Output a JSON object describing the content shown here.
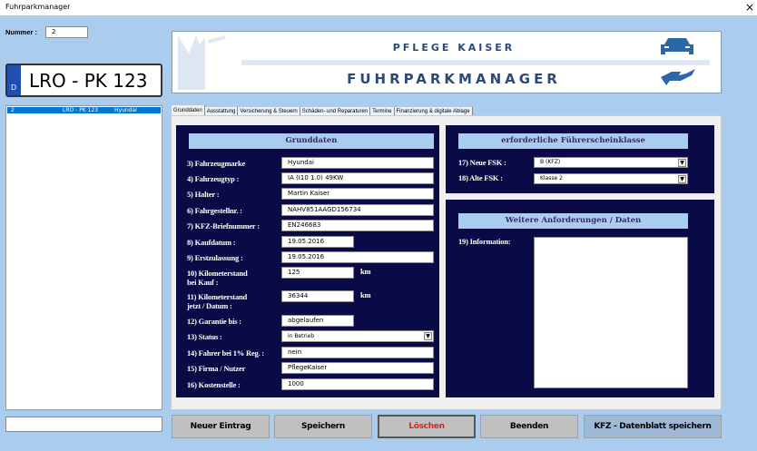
{
  "window": {
    "title": "Fuhrparkmanager",
    "close_icon": "×"
  },
  "nummer": {
    "label": "Nummer :",
    "value": "2"
  },
  "plate": {
    "country": "D",
    "text": "LRO - PK 123"
  },
  "list": {
    "rows": [
      {
        "nr": "2",
        "plate": "LRO - PK 123",
        "brand": "Hyundai"
      }
    ]
  },
  "bottom_input": {
    "value": ""
  },
  "banner": {
    "company": "PFLEGE KAISER",
    "title": "FUHRPARKMANAGER"
  },
  "tabs": [
    "Grunddaten",
    "Ausstattung",
    "Versicherung & Steuern",
    "Schäden- und Reparaturen",
    "Termine",
    "Finanzierung & digitale Ablage"
  ],
  "grunddaten": {
    "header": "Grunddaten",
    "fields": [
      {
        "label": "3) Fahrzeugmarke",
        "value": "Hyundai"
      },
      {
        "label": "4) Fahrzeugtyp :",
        "value": "IA (I10 1.0) 49KW"
      },
      {
        "label": "5) Halter :",
        "value": "Martin Kaiser"
      },
      {
        "label": "6) Fahrgestellnr. :",
        "value": "NAHV851AAGD156734"
      },
      {
        "label": "7) KFZ-Briefnummer :",
        "value": "EN246683"
      },
      {
        "label": "8) Kaufdatum :",
        "value": "19.05.2016"
      },
      {
        "label": "9) Erstzulassung :",
        "value": "19.05.2016"
      },
      {
        "label": "10) Kilometerstand\nbei Kauf :",
        "value": "125",
        "unit": "km"
      },
      {
        "label": "11) Kilometerstand\njetzt / Datum :",
        "value": "36344",
        "unit": "km"
      },
      {
        "label": "12) Garantie bis :",
        "value": "abgelaufen"
      },
      {
        "label": "13) Status :",
        "value": "in Betrieb"
      },
      {
        "label": "14) Fahrer bei 1% Reg. :",
        "value": "nein"
      },
      {
        "label": "15) Firma / Nutzer",
        "value": "PflegeKaiser"
      },
      {
        "label": "16) Kostenstelle :",
        "value": "1000"
      }
    ]
  },
  "fsk": {
    "header": "erforderliche Führerscheinklasse",
    "neu_label": "17) Neue FSK :",
    "neu_value": "B (KFZ)",
    "alt_label": "18) Alte FSK :",
    "alt_value": "Klasse 2"
  },
  "weitere": {
    "header": "Weitere Anforderungen / Daten",
    "info_label": "19) Information:",
    "info_value": ""
  },
  "buttons": {
    "new": "Neuer Eintrag",
    "save": "Speichern",
    "delete": "Löschen",
    "exit": "Beenden",
    "export": "KFZ - Datenblatt speichern"
  },
  "colors": {
    "background": "#a9ccef",
    "panel": "#0a0a46",
    "delete_text": "#e02020",
    "selection": "#0078d7"
  }
}
